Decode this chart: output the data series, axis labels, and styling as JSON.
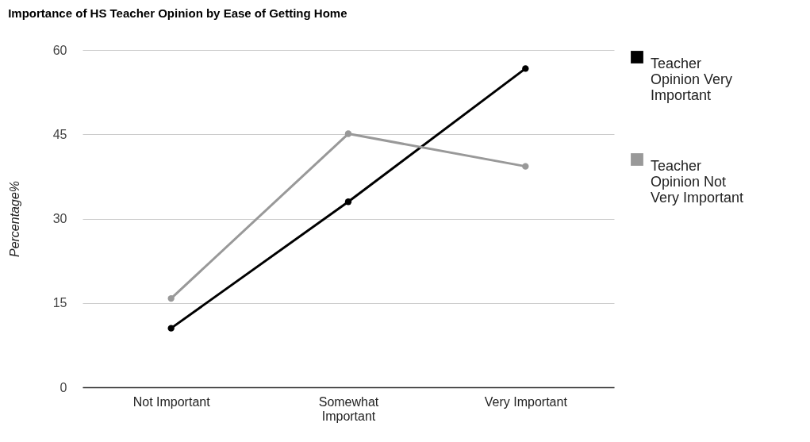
{
  "chart_data": {
    "type": "line",
    "title": "Importance of HS Teacher Opinion by Ease of Getting Home",
    "ylabel": "Percentage%",
    "categories": [
      "Not Important",
      "Somewhat Important",
      "Very Important"
    ],
    "series": [
      {
        "name": "Teacher Opinion Very Important",
        "color": "#000000",
        "values": [
          10.5,
          33,
          56.7
        ]
      },
      {
        "name": "Teacher Opinion Not Very Important",
        "color": "#999999",
        "values": [
          15.8,
          45.1,
          39.3
        ]
      }
    ],
    "ylim": [
      0,
      60
    ],
    "yticks": [
      0,
      15,
      30,
      45,
      60
    ],
    "grid": "y",
    "legend": "right",
    "marker": "circle"
  }
}
